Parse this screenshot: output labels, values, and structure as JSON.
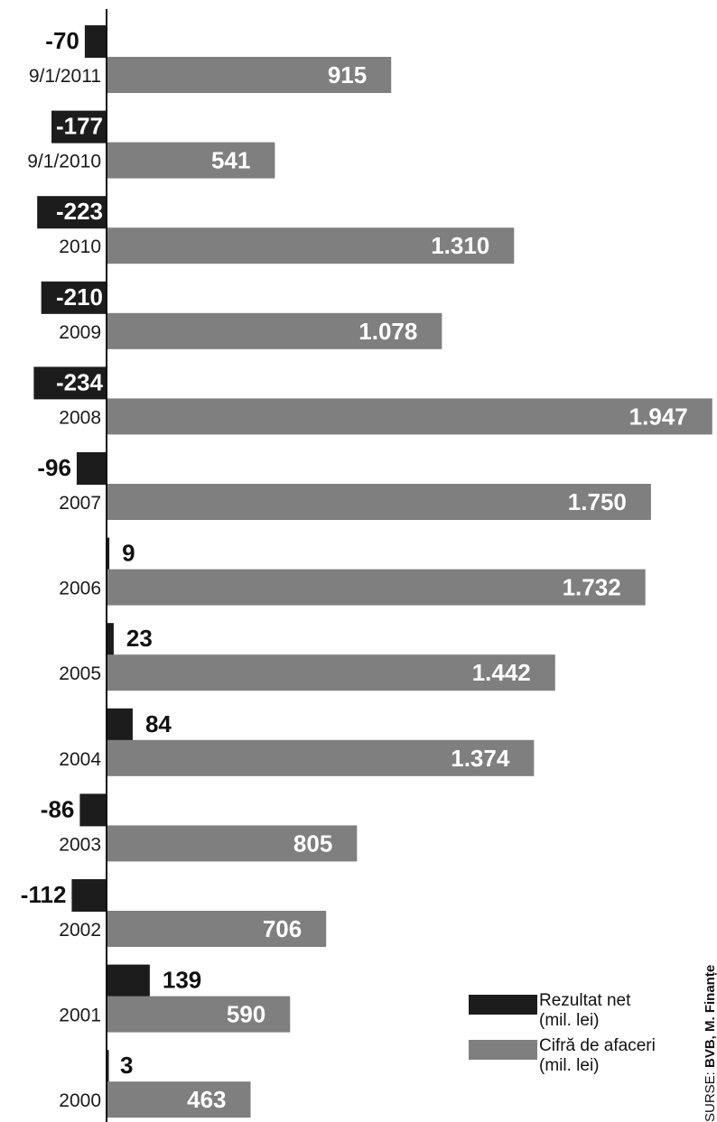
{
  "chart_data": {
    "type": "bar",
    "orientation": "horizontal",
    "categories": [
      "9/1/2011",
      "9/1/2010",
      "2010",
      "2009",
      "2008",
      "2007",
      "2006",
      "2005",
      "2004",
      "2003",
      "2002",
      "2001",
      "2000"
    ],
    "series": [
      {
        "name": "Rezultat net (mil. lei)",
        "color": "#1c1c1c",
        "values": [
          -70,
          -177,
          -223,
          -210,
          -234,
          -96,
          9,
          23,
          84,
          -86,
          -112,
          139,
          3
        ],
        "labels": [
          "-70",
          "-177",
          "-223",
          "-210",
          "-234",
          "-96",
          "9",
          "23",
          "84",
          "-86",
          "-112",
          "139",
          "3"
        ]
      },
      {
        "name": "Cifră de afaceri (mil. lei)",
        "color": "#7f7f7f",
        "values": [
          915,
          541,
          1310,
          1078,
          1947,
          1750,
          1732,
          1442,
          1374,
          805,
          706,
          590,
          463
        ],
        "labels": [
          "915",
          "541",
          "1.310",
          "1.078",
          "1.947",
          "1.750",
          "1.732",
          "1.442",
          "1.374",
          "805",
          "706",
          "590",
          "463"
        ]
      }
    ],
    "legend": {
      "position": "bottom-right",
      "items": [
        {
          "line1": "Rezultat net",
          "line2": "(mil. lei)",
          "color": "#1c1c1c"
        },
        {
          "line1": "Cifră de afaceri",
          "line2": "(mil. lei)",
          "color": "#7f7f7f"
        }
      ]
    },
    "grid": false,
    "source_prefix": "SURSE: ",
    "source": "BVB, M. Finanțe"
  }
}
